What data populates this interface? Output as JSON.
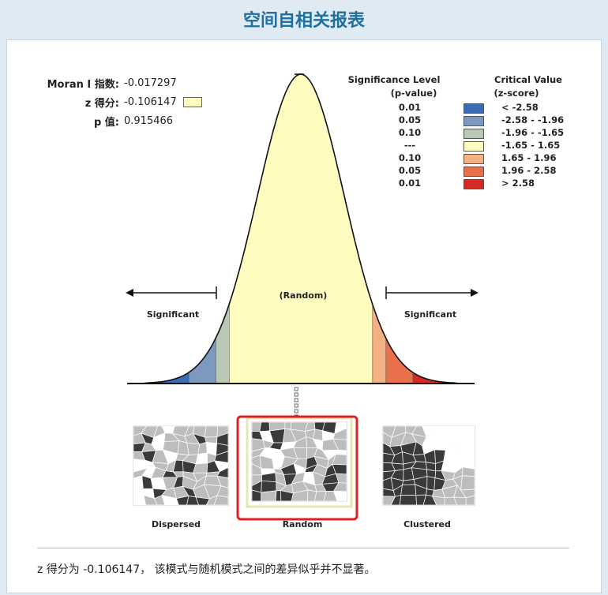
{
  "title": "空间自相关报表",
  "stats": {
    "moran_label": "Moran I 指数:",
    "moran_value": "-0.017297",
    "z_label": "z 得分:",
    "z_value": "-0.106147",
    "p_label": "p 值:",
    "p_value": "0.915466"
  },
  "legend": {
    "sig_header": "Significance Level",
    "sig_sub": "(p-value)",
    "crit_header": "Critical Value",
    "crit_sub": "(z-score)",
    "rows": [
      {
        "p": "0.01",
        "z": "< -2.58",
        "color": "#3a6db5"
      },
      {
        "p": "0.05",
        "z": "-2.58 - -1.96",
        "color": "#7e99bf"
      },
      {
        "p": "0.10",
        "z": "-1.96 - -1.65",
        "color": "#b9c9b5"
      },
      {
        "p": "---",
        "z": "-1.65 - 1.65",
        "color": "#fffcc0"
      },
      {
        "p": "0.10",
        "z": "1.65 - 1.96",
        "color": "#f5b084"
      },
      {
        "p": "0.05",
        "z": "1.96 - 2.58",
        "color": "#e8704a"
      },
      {
        "p": "0.01",
        "z": "> 2.58",
        "color": "#d42a24"
      }
    ]
  },
  "curve": {
    "random_label": "(Random)",
    "significant_left": "Significant",
    "significant_right": "Significant",
    "z_score": -0.106147
  },
  "patterns": {
    "dispersed": "Dispersed",
    "random": "Random",
    "clustered": "Clustered",
    "selected": "random",
    "highlight_color": "#e02020"
  },
  "footer": "z 得分为 -0.106147， 该模式与随机模式之间的差异似乎并不显著。"
}
